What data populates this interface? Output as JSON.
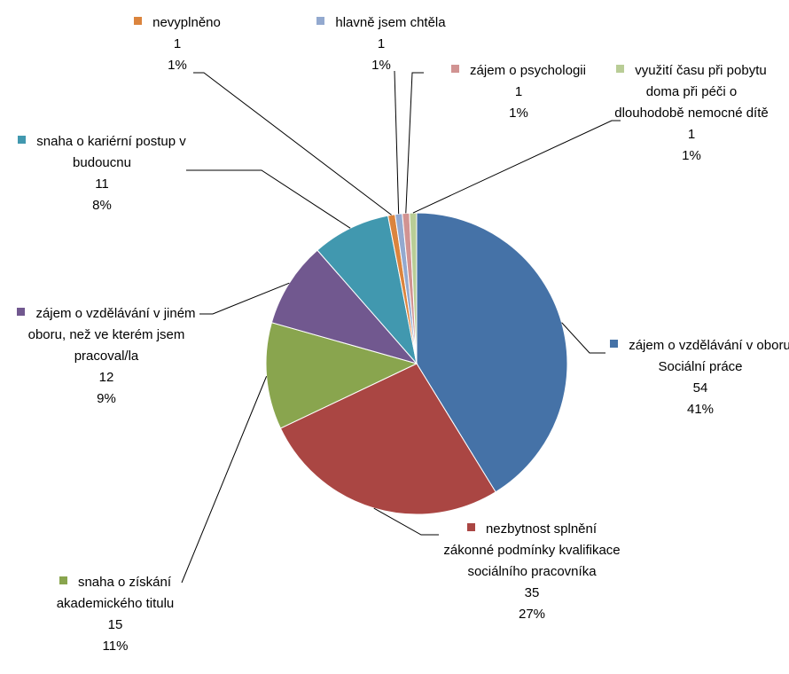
{
  "chart_data": {
    "type": "pie",
    "categories": [
      "zájem o vzdělávání v oboru Sociální práce",
      "nezbytnost splnění zákonné podmínky kvalifikace sociálního pracovníka",
      "snaha o získání akademického titulu",
      "zájem o vzdělávání v jiném oboru, než ve kterém jsem pracoval/la",
      "snaha o kariérní postup v budoucnu",
      "nevyplněno",
      "hlavně jsem chtěla",
      "zájem o psychologii",
      "využití času při pobytu doma při péči o dlouhodobě nemocné dítě"
    ],
    "values": [
      54,
      35,
      15,
      12,
      11,
      1,
      1,
      1,
      1
    ],
    "percentages": [
      "41%",
      "27%",
      "11%",
      "9%",
      "8%",
      "1%",
      "1%",
      "1%",
      "1%"
    ],
    "colors": [
      "#4572a7",
      "#aa4643",
      "#89a54e",
      "#71588f",
      "#4198af",
      "#db843d",
      "#93a9cf",
      "#d19392",
      "#b9cd96"
    ]
  }
}
